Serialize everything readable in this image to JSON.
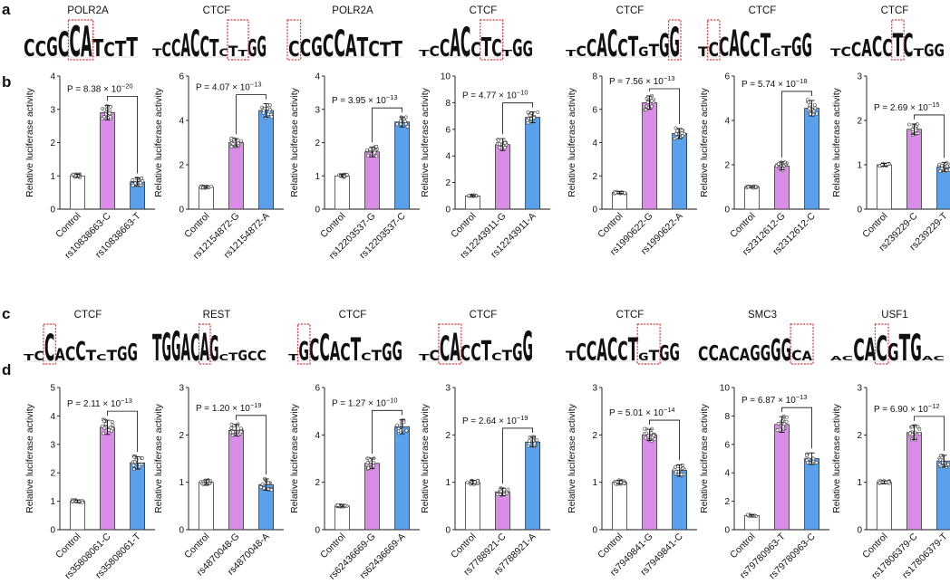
{
  "panel_labels": [
    "a",
    "b",
    "c",
    "d"
  ],
  "colors": {
    "control_bar": "#ffffff",
    "ref_allele_bar": "#d98ce8",
    "alt_allele_bar": "#5aa0ea",
    "box_highlight": "#e0303a",
    "base_A": "#2f9e44",
    "base_C": "#2f66c4",
    "base_G": "#f0a422",
    "base_T": "#d9252e"
  },
  "motifs_row1": [
    {
      "title": "POLR2A",
      "logo": "CCGCCATCTT",
      "heights": [
        0.55,
        0.5,
        0.6,
        0.8,
        1,
        1,
        0.55,
        0.45,
        0.5,
        0.6
      ],
      "highlight": [
        4,
        5
      ]
    },
    {
      "title": "CTCF",
      "logo": "TCCACCTCTTGG",
      "heights": [
        0.25,
        0.45,
        0.55,
        0.75,
        0.85,
        0.65,
        0.55,
        0.25,
        0.35,
        0.2,
        0.55,
        0.65
      ],
      "highlight": [
        8,
        9
      ]
    },
    {
      "title": "POLR2A",
      "logo": "CCGCCATCTT",
      "heights": [
        0.5,
        0.55,
        0.6,
        0.7,
        0.85,
        0.7,
        0.6,
        0.5,
        0.45,
        0.5
      ],
      "highlight": [
        0,
        0
      ]
    },
    {
      "title": "CTCF",
      "logo": "TCCACCTCTGG",
      "heights": [
        0.2,
        0.35,
        0.55,
        0.9,
        0.95,
        0.45,
        0.6,
        0.55,
        0.2,
        0.55,
        0.5
      ],
      "highlight": [
        6,
        7
      ]
    },
    {
      "title": "CTCF",
      "logo": "TCCACCTGTGG",
      "heights": [
        0.2,
        0.35,
        0.55,
        0.75,
        0.85,
        0.55,
        0.65,
        0.3,
        0.4,
        0.75,
        0.95
      ],
      "highlight": [
        10,
        10
      ]
    },
    {
      "title": "CTCF",
      "logo": "TCCACCTGTGG",
      "heights": [
        0.3,
        0.45,
        0.6,
        0.85,
        0.8,
        0.55,
        0.75,
        0.25,
        0.35,
        0.6,
        0.75
      ],
      "highlight": [
        1,
        1
      ]
    },
    {
      "title": "CTCF",
      "logo": "TCCACCTCTGG",
      "heights": [
        0.25,
        0.3,
        0.45,
        0.55,
        0.65,
        0.55,
        0.75,
        0.75,
        0.25,
        0.4,
        0.4
      ],
      "highlight": [
        6,
        6
      ]
    }
  ],
  "motifs_row2": [
    {
      "title": "CTCF",
      "logo": "TCCACCTCTGG",
      "heights": [
        0.2,
        0.3,
        0.85,
        0.4,
        0.45,
        0.6,
        0.35,
        0.2,
        0.35,
        0.45,
        0.55
      ],
      "highlight": [
        2,
        2
      ]
    },
    {
      "title": "REST",
      "logo": "TGGACAGCTGCC",
      "heights": [
        0.85,
        0.9,
        0.95,
        0.85,
        0.85,
        0.9,
        0.8,
        0.2,
        0.25,
        0.35,
        0.3,
        0.35
      ],
      "highlight": [
        5,
        5
      ]
    },
    {
      "title": "CTCF",
      "logo": "TGCCACTCTGG",
      "heights": [
        0.2,
        0.6,
        0.7,
        0.85,
        0.6,
        0.55,
        0.75,
        0.25,
        0.35,
        0.55,
        0.6
      ],
      "highlight": [
        1,
        1
      ]
    },
    {
      "title": "CTCF",
      "logo": "TCCACCTCTGG",
      "heights": [
        0.2,
        0.35,
        0.8,
        0.9,
        0.5,
        0.55,
        0.65,
        0.25,
        0.35,
        0.55,
        0.95
      ],
      "highlight": [
        2,
        3
      ]
    },
    {
      "title": "CTCF",
      "logo": "TCCACCTGTGG",
      "heights": [
        0.3,
        0.55,
        0.6,
        0.7,
        0.75,
        0.6,
        0.75,
        0.25,
        0.35,
        0.5,
        0.55
      ],
      "highlight": [
        7,
        8
      ]
    },
    {
      "title": "SMC3",
      "logo": "CCACAGGGGCA",
      "heights": [
        0.45,
        0.5,
        0.4,
        0.45,
        0.4,
        0.5,
        0.5,
        0.7,
        0.7,
        0.35,
        0.3
      ],
      "highlight": [
        9,
        10
      ]
    },
    {
      "title": "USF1",
      "logo": "ACCACGTGAC",
      "heights": [
        0.15,
        0.15,
        0.7,
        0.75,
        0.8,
        0.55,
        0.85,
        0.85,
        0.15,
        0.15
      ],
      "highlight": [
        4,
        4
      ]
    }
  ],
  "ylabel": "Relative luciferase activity",
  "chart_data": [
    {
      "type": "bar",
      "row": "b",
      "categories": [
        "Control",
        "rs10838663-C",
        "rs10838663-T"
      ],
      "values": [
        1.0,
        2.9,
        0.82
      ],
      "errors": [
        0.05,
        0.22,
        0.12
      ],
      "ylim": [
        0,
        4
      ],
      "yticks": [
        0,
        1,
        2,
        3,
        4
      ],
      "pvalue": "P = 8.38 × 10",
      "pexp": "−20",
      "compare": [
        1,
        2
      ]
    },
    {
      "type": "bar",
      "row": "b",
      "categories": [
        "Control",
        "rs12154872-G",
        "rs12154872-A"
      ],
      "values": [
        1.0,
        3.0,
        4.45
      ],
      "errors": [
        0.04,
        0.18,
        0.3
      ],
      "ylim": [
        0,
        6
      ],
      "yticks": [
        0,
        2,
        4,
        6
      ],
      "pvalue": "P = 4.07 × 10",
      "pexp": "−13",
      "compare": [
        1,
        2
      ]
    },
    {
      "type": "bar",
      "row": "b",
      "categories": [
        "Control",
        "rs12203537-G",
        "rs12203537-C"
      ],
      "values": [
        1.0,
        1.72,
        2.62
      ],
      "errors": [
        0.04,
        0.15,
        0.15
      ],
      "ylim": [
        0,
        4
      ],
      "yticks": [
        0,
        1,
        2,
        3,
        4
      ],
      "pvalue": "P = 3.95 × 10",
      "pexp": "−13",
      "compare": [
        1,
        2
      ]
    },
    {
      "type": "bar",
      "row": "b",
      "categories": [
        "Control",
        "rs12243911-G",
        "rs12243911-A"
      ],
      "values": [
        1.0,
        4.85,
        6.9
      ],
      "errors": [
        0.05,
        0.45,
        0.4
      ],
      "ylim": [
        0,
        10
      ],
      "yticks": [
        0,
        2,
        4,
        6,
        8,
        10
      ],
      "pvalue": "P = 4.77 × 10",
      "pexp": "−10",
      "compare": [
        1,
        2
      ]
    },
    {
      "type": "bar",
      "row": "b",
      "categories": [
        "Control",
        "rs1990622-G",
        "rs1990622-A"
      ],
      "values": [
        1.0,
        6.4,
        4.55
      ],
      "errors": [
        0.05,
        0.4,
        0.3
      ],
      "ylim": [
        0,
        8
      ],
      "yticks": [
        0,
        2,
        4,
        6,
        8
      ],
      "pvalue": "P = 7.56 × 10",
      "pexp": "−13",
      "compare": [
        1,
        2
      ]
    },
    {
      "type": "bar",
      "row": "b",
      "categories": [
        "Control",
        "rs2312612-G",
        "rs2312612-C"
      ],
      "values": [
        1.0,
        1.95,
        4.55
      ],
      "errors": [
        0.04,
        0.18,
        0.35
      ],
      "ylim": [
        0,
        6
      ],
      "yticks": [
        0,
        2,
        4,
        6
      ],
      "pvalue": "P = 5.74 × 10",
      "pexp": "−18",
      "compare": [
        1,
        2
      ]
    },
    {
      "type": "bar",
      "row": "b",
      "categories": [
        "Control",
        "rs239229-C",
        "rs239229-T"
      ],
      "values": [
        1.0,
        1.8,
        0.95
      ],
      "errors": [
        0.03,
        0.12,
        0.1
      ],
      "ylim": [
        0,
        3
      ],
      "yticks": [
        0,
        1,
        2,
        3
      ],
      "pvalue": "P = 2.69 × 10",
      "pexp": "−15",
      "compare": [
        1,
        2
      ]
    },
    {
      "type": "bar",
      "row": "d",
      "categories": [
        "Control",
        "rs35808061-C",
        "rs35808061-T"
      ],
      "values": [
        1.0,
        3.6,
        2.35
      ],
      "errors": [
        0.04,
        0.25,
        0.22
      ],
      "ylim": [
        0,
        5
      ],
      "yticks": [
        0,
        1,
        2,
        3,
        4,
        5
      ],
      "pvalue": "P = 2.11 × 10",
      "pexp": "−13",
      "compare": [
        1,
        2
      ]
    },
    {
      "type": "bar",
      "row": "d",
      "categories": [
        "Control",
        "rs4870048-G",
        "rs4870048-A"
      ],
      "values": [
        1.0,
        2.1,
        0.95
      ],
      "errors": [
        0.05,
        0.12,
        0.12
      ],
      "ylim": [
        0,
        3
      ],
      "yticks": [
        0,
        1,
        2,
        3
      ],
      "pvalue": "P = 1.20 × 10",
      "pexp": "−19",
      "compare": [
        1,
        2
      ]
    },
    {
      "type": "bar",
      "row": "d",
      "categories": [
        "Control",
        "rs62436669-G",
        "rs62436669-A"
      ],
      "values": [
        1.0,
        2.8,
        4.35
      ],
      "errors": [
        0.04,
        0.22,
        0.3
      ],
      "ylim": [
        0,
        6
      ],
      "yticks": [
        0,
        2,
        4,
        6
      ],
      "pvalue": "P = 1.27 × 10",
      "pexp": "−10",
      "compare": [
        1,
        2
      ]
    },
    {
      "type": "bar",
      "row": "d",
      "categories": [
        "Control",
        "rs7788921-C",
        "rs7788921-A"
      ],
      "values": [
        1.0,
        0.8,
        1.85
      ],
      "errors": [
        0.04,
        0.08,
        0.1
      ],
      "ylim": [
        0,
        3
      ],
      "yticks": [
        0,
        1,
        2,
        3
      ],
      "pvalue": "P = 2.64 × 10",
      "pexp": "−19",
      "compare": [
        1,
        2
      ]
    },
    {
      "type": "bar",
      "row": "d",
      "categories": [
        "Control",
        "rs7949841-G",
        "rs7949841-C"
      ],
      "values": [
        1.0,
        2.0,
        1.25
      ],
      "errors": [
        0.04,
        0.12,
        0.12
      ],
      "ylim": [
        0,
        3
      ],
      "yticks": [
        0,
        1,
        2,
        3
      ],
      "pvalue": "P = 5.01 × 10",
      "pexp": "−14",
      "compare": [
        1,
        2
      ]
    },
    {
      "type": "bar",
      "row": "d",
      "categories": [
        "Control",
        "rs79780963-T",
        "rs79780963-C"
      ],
      "values": [
        1.0,
        7.4,
        5.0
      ],
      "errors": [
        0.05,
        0.55,
        0.4
      ],
      "ylim": [
        0,
        10
      ],
      "yticks": [
        0,
        2,
        4,
        6,
        8,
        10
      ],
      "pvalue": "P = 6.87 × 10",
      "pexp": "−13",
      "compare": [
        1,
        2
      ]
    },
    {
      "type": "bar",
      "row": "d",
      "categories": [
        "Control",
        "rs17806379-C",
        "rs17806379-T"
      ],
      "values": [
        1.0,
        2.05,
        1.45
      ],
      "errors": [
        0.03,
        0.15,
        0.12
      ],
      "ylim": [
        0,
        3
      ],
      "yticks": [
        0,
        1,
        2,
        3
      ],
      "pvalue": "P = 6.90 × 10",
      "pexp": "−12",
      "compare": [
        1,
        2
      ]
    }
  ]
}
